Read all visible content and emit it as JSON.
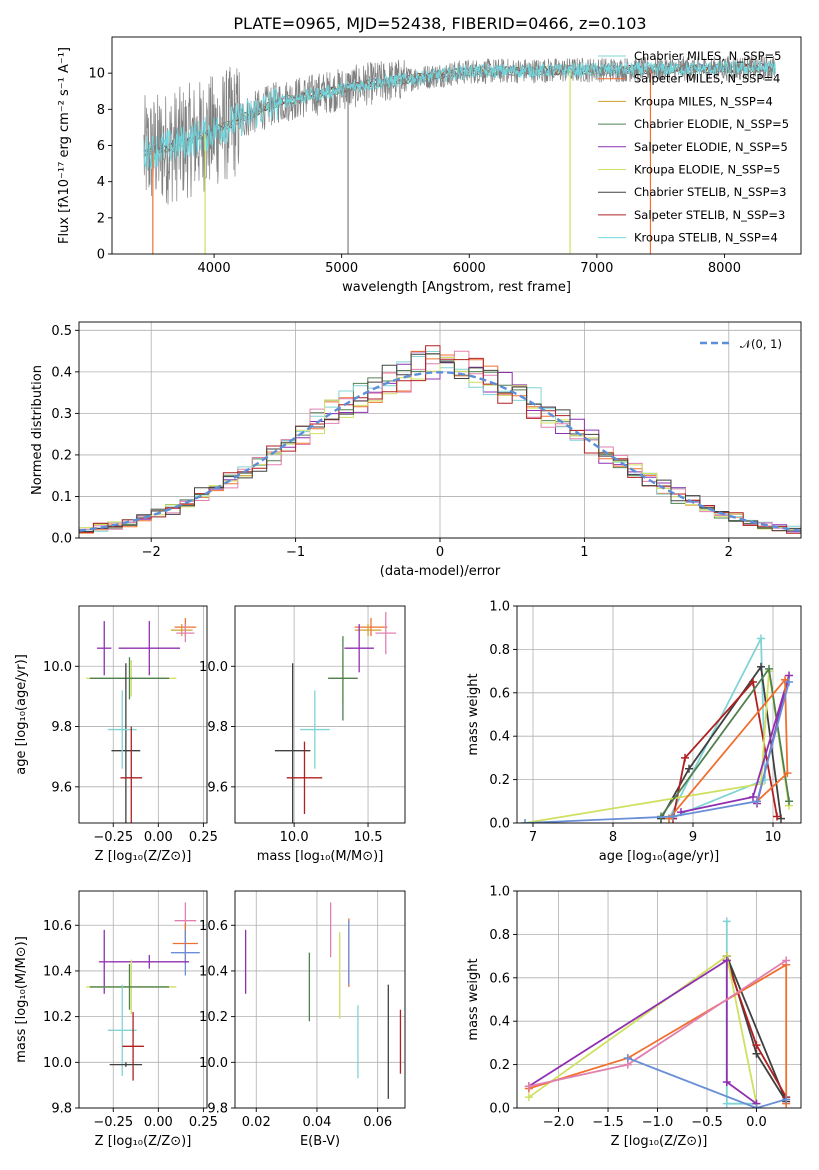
{
  "chart_data": [
    {
      "id": "spectrum",
      "type": "line",
      "title": "PLATE=0965, MJD=52438, FIBERID=0466, z=0.103",
      "xlabel": "wavelength [Angstrom, rest frame]",
      "ylabel": "Flux [fλ10⁻¹⁷ erg cm⁻² s⁻¹ A⁻¹]",
      "xlim": [
        3200,
        8600
      ],
      "ylim": [
        0,
        12
      ],
      "xticks": [
        4000,
        5000,
        6000,
        7000,
        8000
      ],
      "yticks": [
        0,
        2,
        4,
        6,
        8,
        10
      ],
      "data_color": "#808080",
      "x_range_plotted": [
        3450,
        8400
      ],
      "legend": [
        {
          "name": "Chabrier MILES, N_SSP=5",
          "color": "#80d4d4"
        },
        {
          "name": "Salpeter MILES, N_SSP=4",
          "color": "#f07030"
        },
        {
          "name": "Kroupa MILES, N_SSP=4",
          "color": "#d0a030"
        },
        {
          "name": "Chabrier ELODIE, N_SSP=5",
          "color": "#508050"
        },
        {
          "name": "Salpeter ELODIE, N_SSP=5",
          "color": "#9030b0"
        },
        {
          "name": "Kroupa ELODIE, N_SSP=5",
          "color": "#d0e060"
        },
        {
          "name": "Chabrier STELIB, N_SSP=3",
          "color": "#404040"
        },
        {
          "name": "Salpeter STELIB, N_SSP=3",
          "color": "#b02020"
        },
        {
          "name": "Kroupa STELIB, N_SSP=4",
          "color": "#70d8e0"
        }
      ]
    },
    {
      "id": "residuals",
      "type": "histogram",
      "xlabel": "(data-model)/error",
      "ylabel": "Normed distribution",
      "xlim": [
        -2.5,
        2.5
      ],
      "ylim": [
        0,
        0.52
      ],
      "xticks": [
        -2,
        -1,
        0,
        1,
        2
      ],
      "yticks": [
        0.0,
        0.1,
        0.2,
        0.3,
        0.4,
        0.5
      ],
      "legend": [
        {
          "name": "𝒩(0, 1)",
          "color": "#5b8fd9"
        }
      ],
      "bin_width": 0.1,
      "series_colors": [
        "#9030b0",
        "#508050",
        "#f07030",
        "#80d4d4",
        "#e080b0",
        "#d0e060",
        "#b02020",
        "#404040"
      ],
      "base_values": [
        0.02,
        0.022,
        0.025,
        0.03,
        0.035,
        0.042,
        0.05,
        0.058,
        0.066,
        0.076,
        0.087,
        0.1,
        0.115,
        0.13,
        0.145,
        0.162,
        0.18,
        0.2,
        0.22,
        0.24,
        0.262,
        0.285,
        0.305,
        0.3,
        0.295,
        0.3,
        0.32,
        0.34,
        0.36,
        0.38,
        0.4,
        0.42,
        0.43,
        0.44,
        0.43,
        0.41,
        0.4,
        0.41,
        0.42,
        0.43,
        0.425,
        0.4,
        0.38,
        0.365,
        0.355,
        0.36,
        0.34,
        0.315,
        0.295,
        0.275,
        0.26,
        0.245,
        0.225,
        0.2,
        0.18,
        0.16,
        0.14,
        0.12,
        0.103,
        0.09,
        0.08,
        0.07,
        0.06,
        0.055,
        0.05,
        0.045,
        0.04,
        0.035,
        0.031,
        0.028,
        0.025,
        0.022,
        0.02,
        0.018,
        0.016,
        0.014,
        0.012,
        0.011,
        0.01,
        0.009,
        0.008,
        0.007,
        0.006,
        0.005,
        0.004,
        0.003,
        0.0025,
        0.002,
        0.0015,
        0.001
      ]
    },
    {
      "id": "age-vs-Z",
      "type": "errorbar",
      "xlabel": "Z [log₁₀(Z/Z⊙)]",
      "ylabel": "age  [log₁₀(age/yr)]",
      "xlim": [
        -0.44,
        0.27
      ],
      "ylim": [
        9.48,
        10.2
      ],
      "xticks": [
        -0.25,
        0.0,
        0.25
      ],
      "xticklabels": [
        "−0.25",
        "0.00",
        "0.25"
      ],
      "yticks": [
        9.6,
        9.8,
        10.0
      ],
      "points": [
        {
          "x": 0.15,
          "y": 10.13,
          "xerr": 0.06,
          "yerr": 0.03,
          "color": "#f07030"
        },
        {
          "x": 0.13,
          "y": 10.12,
          "xerr": 0.06,
          "yerr": 0.02,
          "color": "#d0a030"
        },
        {
          "x": 0.15,
          "y": 10.11,
          "xerr": 0.05,
          "yerr": 0.03,
          "color": "#e080b0"
        },
        {
          "x": -0.05,
          "y": 10.06,
          "xerr": 0.17,
          "yerr": 0.09,
          "color": "#9030b0"
        },
        {
          "x": -0.3,
          "y": 10.06,
          "xerr": 0.04,
          "yerr": 0.09,
          "color": "#9030b0"
        },
        {
          "x": -0.15,
          "y": 9.96,
          "xerr": 0.25,
          "yerr": 0.06,
          "color": "#d0e060"
        },
        {
          "x": -0.16,
          "y": 9.96,
          "xerr": 0.22,
          "yerr": 0.07,
          "color": "#508050"
        },
        {
          "x": -0.18,
          "y": 9.72,
          "xerr": 0.08,
          "yerr": 0.29,
          "color": "#404040"
        },
        {
          "x": -0.2,
          "y": 9.79,
          "xerr": 0.08,
          "yerr": 0.13,
          "color": "#80d4d4"
        },
        {
          "x": -0.15,
          "y": 9.63,
          "xerr": 0.06,
          "yerr": 0.17,
          "color": "#b02020"
        }
      ]
    },
    {
      "id": "age-vs-mass",
      "type": "errorbar",
      "xlabel": "mass [log₁₀(M/M⊙)]",
      "xlim": [
        9.6,
        10.75
      ],
      "ylim": [
        9.48,
        10.2
      ],
      "xticks": [
        10.0,
        10.5
      ],
      "yticks": [
        9.6,
        9.8,
        10.0
      ],
      "points": [
        {
          "x": 10.52,
          "y": 10.13,
          "xerr": 0.11,
          "yerr": 0.03,
          "color": "#f07030"
        },
        {
          "x": 10.5,
          "y": 10.12,
          "xerr": 0.09,
          "yerr": 0.02,
          "color": "#d0a030"
        },
        {
          "x": 10.62,
          "y": 10.11,
          "xerr": 0.07,
          "yerr": 0.07,
          "color": "#e080b0"
        },
        {
          "x": 10.44,
          "y": 10.06,
          "xerr": 0.1,
          "yerr": 0.08,
          "color": "#9030b0"
        },
        {
          "x": 10.33,
          "y": 9.96,
          "xerr": 0.1,
          "yerr": 0.08,
          "color": "#d0e060"
        },
        {
          "x": 10.33,
          "y": 9.96,
          "xerr": 0.1,
          "yerr": 0.14,
          "color": "#508050"
        },
        {
          "x": 9.99,
          "y": 9.72,
          "xerr": 0.12,
          "yerr": 0.29,
          "color": "#404040"
        },
        {
          "x": 10.14,
          "y": 9.79,
          "xerr": 0.1,
          "yerr": 0.13,
          "color": "#80d4d4"
        },
        {
          "x": 10.07,
          "y": 9.63,
          "xerr": 0.12,
          "yerr": 0.12,
          "color": "#b02020"
        }
      ]
    },
    {
      "id": "massweight-vs-age",
      "type": "line",
      "xlabel": "age  [log₁₀(age/yr)]",
      "ylabel": "mass weight",
      "xlim": [
        6.8,
        10.35
      ],
      "ylim": [
        0,
        1.0
      ],
      "xticks": [
        7,
        8,
        9,
        10
      ],
      "yticks": [
        0.0,
        0.2,
        0.4,
        0.6,
        0.8,
        1.0
      ],
      "series": [
        {
          "color": "#80d4d4",
          "points": [
            [
              8.7,
              0.02
            ],
            [
              9.9,
              0.2
            ],
            [
              9.85,
              0.85
            ],
            [
              8.7,
              0.02
            ]
          ]
        },
        {
          "color": "#404040",
          "points": [
            [
              8.6,
              0.02
            ],
            [
              8.95,
              0.25
            ],
            [
              9.85,
              0.72
            ],
            [
              10.1,
              0.02
            ]
          ]
        },
        {
          "color": "#b02020",
          "points": [
            [
              8.75,
              0.02
            ],
            [
              8.9,
              0.3
            ],
            [
              9.75,
              0.65
            ],
            [
              10.05,
              0.03
            ]
          ]
        },
        {
          "color": "#d0e060",
          "points": [
            [
              6.9,
              0.0
            ],
            [
              9.85,
              0.18
            ],
            [
              9.95,
              0.7
            ],
            [
              10.2,
              0.08
            ]
          ]
        },
        {
          "color": "#508050",
          "points": [
            [
              8.6,
              0.03
            ],
            [
              9.95,
              0.71
            ],
            [
              10.2,
              0.1
            ]
          ]
        },
        {
          "color": "#9030b0",
          "points": [
            [
              8.85,
              0.05
            ],
            [
              9.75,
              0.12
            ],
            [
              10.2,
              0.68
            ],
            [
              9.8,
              0.09
            ]
          ]
        },
        {
          "color": "#f07030",
          "points": [
            [
              8.7,
              0.02
            ],
            [
              10.15,
              0.66
            ],
            [
              10.18,
              0.23
            ],
            [
              9.8,
              0.1
            ]
          ]
        },
        {
          "color": "#6a8fd6",
          "points": [
            [
              6.9,
              0.0
            ],
            [
              8.75,
              0.03
            ],
            [
              9.8,
              0.1
            ],
            [
              10.2,
              0.65
            ]
          ]
        }
      ]
    },
    {
      "id": "mass-vs-Z",
      "type": "errorbar",
      "xlabel": "Z [log₁₀(Z/Z⊙)]",
      "ylabel": "mass [log₁₀(M/M⊙)]",
      "xlim": [
        -0.44,
        0.27
      ],
      "ylim": [
        9.8,
        10.75
      ],
      "xticks": [
        -0.25,
        0.0,
        0.25
      ],
      "xticklabels": [
        "−0.25",
        "0.00",
        "0.25"
      ],
      "yticks": [
        9.8,
        10.0,
        10.2,
        10.4,
        10.6
      ],
      "points": [
        {
          "x": 0.15,
          "y": 10.62,
          "xerr": 0.06,
          "yerr": 0.08,
          "color": "#e080b0"
        },
        {
          "x": 0.15,
          "y": 10.52,
          "xerr": 0.07,
          "yerr": 0.09,
          "color": "#f07030"
        },
        {
          "x": 0.15,
          "y": 10.48,
          "xerr": 0.08,
          "yerr": 0.1,
          "color": "#6a8fd6"
        },
        {
          "x": -0.05,
          "y": 10.44,
          "xerr": 0.22,
          "yerr": 0.03,
          "color": "#9030b0"
        },
        {
          "x": -0.3,
          "y": 10.44,
          "xerr": 0.03,
          "yerr": 0.14,
          "color": "#9030b0"
        },
        {
          "x": -0.15,
          "y": 10.33,
          "xerr": 0.25,
          "yerr": 0.12,
          "color": "#d0e060"
        },
        {
          "x": -0.16,
          "y": 10.33,
          "xerr": 0.22,
          "yerr": 0.1,
          "color": "#508050"
        },
        {
          "x": -0.2,
          "y": 10.14,
          "xerr": 0.08,
          "yerr": 0.2,
          "color": "#80d4d4"
        },
        {
          "x": -0.14,
          "y": 10.07,
          "xerr": 0.06,
          "yerr": 0.15,
          "color": "#b02020"
        },
        {
          "x": -0.18,
          "y": 9.99,
          "xerr": 0.09,
          "yerr": 0.01,
          "color": "#404040"
        }
      ]
    },
    {
      "id": "mass-vs-ebv",
      "type": "errorbar",
      "xlabel": "E(B-V)",
      "xlim": [
        0.013,
        0.069
      ],
      "ylim": [
        9.8,
        10.75
      ],
      "xticks": [
        0.02,
        0.04,
        0.06
      ],
      "yticks": [
        9.8,
        10.0,
        10.2,
        10.4,
        10.6
      ],
      "points": [
        {
          "x": 0.0165,
          "y": 10.44,
          "yerr": 0.14,
          "color": "#9030b0"
        },
        {
          "x": 0.0375,
          "y": 10.33,
          "yerr": 0.15,
          "color": "#508050"
        },
        {
          "x": 0.0445,
          "y": 10.58,
          "yerr": 0.12,
          "color": "#e080b0"
        },
        {
          "x": 0.0475,
          "y": 10.38,
          "yerr": 0.19,
          "color": "#d0e060"
        },
        {
          "x": 0.0505,
          "y": 10.48,
          "yerr": 0.15,
          "color": "#f07030"
        },
        {
          "x": 0.0505,
          "y": 10.48,
          "yerr": 0.14,
          "color": "#6a8fd6"
        },
        {
          "x": 0.0535,
          "y": 10.09,
          "yerr": 0.16,
          "color": "#80d4d4"
        },
        {
          "x": 0.0635,
          "y": 10.09,
          "yerr": 0.25,
          "color": "#404040"
        },
        {
          "x": 0.0675,
          "y": 10.09,
          "yerr": 0.14,
          "color": "#b02020"
        }
      ]
    },
    {
      "id": "massweight-vs-Z",
      "type": "line",
      "xlabel": "Z [log₁₀(Z/Z⊙)]",
      "ylabel": "mass weight",
      "xlim": [
        -2.42,
        0.45
      ],
      "ylim": [
        0,
        1.0
      ],
      "xticks": [
        -2.0,
        -1.5,
        -1.0,
        -0.5,
        0.0
      ],
      "xticklabels": [
        "−2.0",
        "−1.5",
        "−1.0",
        "−0.5",
        "0.0"
      ],
      "yticks": [
        0.0,
        0.2,
        0.4,
        0.6,
        0.8,
        1.0
      ],
      "series": [
        {
          "color": "#80d4d4",
          "points": [
            [
              -0.3,
              0.86
            ],
            [
              -0.3,
              0.02
            ],
            [
              0.0,
              0.02
            ]
          ]
        },
        {
          "color": "#404040",
          "points": [
            [
              -0.3,
              0.7
            ],
            [
              0.0,
              0.25
            ],
            [
              0.3,
              0.03
            ],
            [
              -0.3,
              0.7
            ]
          ]
        },
        {
          "color": "#b02020",
          "points": [
            [
              -0.3,
              0.68
            ],
            [
              0.0,
              0.29
            ],
            [
              0.3,
              0.05
            ]
          ]
        },
        {
          "color": "#d0e060",
          "points": [
            [
              -2.3,
              0.05
            ],
            [
              -0.3,
              0.7
            ],
            [
              0.0,
              0.02
            ]
          ]
        },
        {
          "color": "#9030b0",
          "points": [
            [
              -2.3,
              0.1
            ],
            [
              -0.3,
              0.68
            ],
            [
              -0.3,
              0.12
            ],
            [
              0.0,
              0.02
            ]
          ]
        },
        {
          "color": "#f07030",
          "points": [
            [
              -2.3,
              0.09
            ],
            [
              -1.3,
              0.23
            ],
            [
              0.3,
              0.66
            ],
            [
              0.3,
              0.02
            ]
          ]
        },
        {
          "color": "#e080b0",
          "points": [
            [
              -2.3,
              0.1
            ],
            [
              -1.3,
              0.2
            ],
            [
              0.3,
              0.68
            ]
          ]
        },
        {
          "color": "#6a8fd6",
          "points": [
            [
              -1.3,
              0.23
            ],
            [
              0.0,
              0.0
            ],
            [
              0.3,
              0.04
            ]
          ]
        }
      ]
    }
  ]
}
